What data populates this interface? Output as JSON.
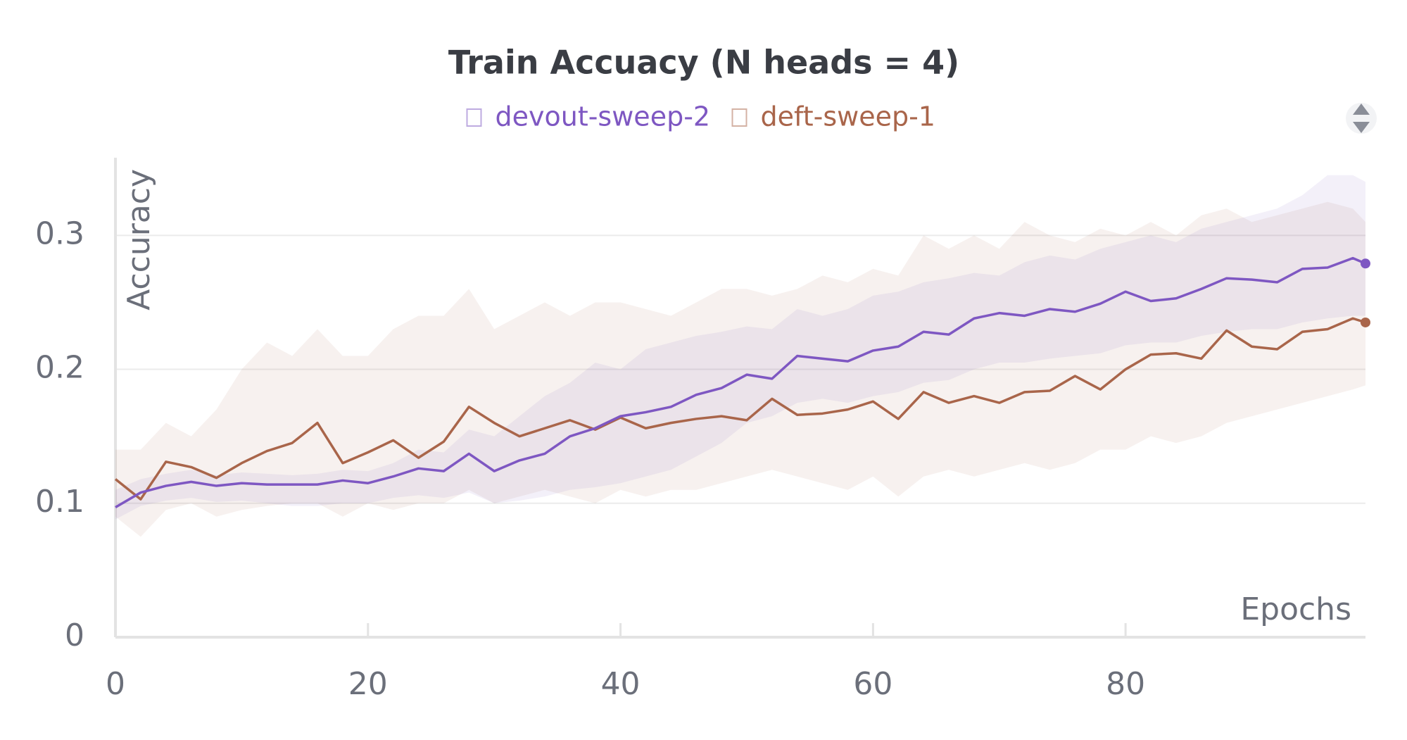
{
  "chart_data": {
    "type": "line",
    "title": "Train Accuacy (N heads = 4)",
    "x_label": "Epochs",
    "y_label": "Accuracy",
    "x": [
      0,
      2,
      4,
      6,
      8,
      10,
      12,
      14,
      16,
      18,
      20,
      22,
      24,
      26,
      28,
      30,
      32,
      34,
      36,
      38,
      40,
      42,
      44,
      46,
      48,
      50,
      52,
      54,
      56,
      58,
      60,
      62,
      64,
      66,
      68,
      70,
      72,
      74,
      76,
      78,
      80,
      82,
      84,
      86,
      88,
      90,
      92,
      94,
      96,
      98,
      99
    ],
    "series": [
      {
        "name": "devout-sweep-2",
        "color": "#7e57c2",
        "values": [
          0.097,
          0.108,
          0.113,
          0.116,
          0.113,
          0.115,
          0.114,
          0.114,
          0.114,
          0.117,
          0.115,
          0.12,
          0.126,
          0.124,
          0.137,
          0.124,
          0.132,
          0.137,
          0.15,
          0.156,
          0.165,
          0.168,
          0.172,
          0.181,
          0.186,
          0.196,
          0.193,
          0.21,
          0.208,
          0.206,
          0.214,
          0.217,
          0.228,
          0.226,
          0.238,
          0.242,
          0.24,
          0.245,
          0.243,
          0.249,
          0.258,
          0.251,
          0.253,
          0.26,
          0.268,
          0.267,
          0.265,
          0.275,
          0.276,
          0.283,
          0.279
        ],
        "upper": [
          0.11,
          0.118,
          0.122,
          0.125,
          0.121,
          0.123,
          0.122,
          0.121,
          0.122,
          0.125,
          0.124,
          0.13,
          0.14,
          0.138,
          0.155,
          0.15,
          0.165,
          0.18,
          0.19,
          0.205,
          0.2,
          0.215,
          0.22,
          0.225,
          0.228,
          0.232,
          0.23,
          0.245,
          0.24,
          0.245,
          0.255,
          0.258,
          0.265,
          0.268,
          0.272,
          0.27,
          0.28,
          0.285,
          0.282,
          0.29,
          0.295,
          0.3,
          0.295,
          0.305,
          0.31,
          0.315,
          0.32,
          0.33,
          0.345,
          0.345,
          0.34
        ],
        "lower": [
          0.088,
          0.098,
          0.102,
          0.104,
          0.101,
          0.102,
          0.1,
          0.098,
          0.098,
          0.1,
          0.1,
          0.104,
          0.106,
          0.104,
          0.108,
          0.1,
          0.102,
          0.105,
          0.11,
          0.112,
          0.115,
          0.12,
          0.125,
          0.135,
          0.145,
          0.16,
          0.165,
          0.175,
          0.178,
          0.175,
          0.18,
          0.183,
          0.19,
          0.192,
          0.2,
          0.205,
          0.205,
          0.208,
          0.21,
          0.212,
          0.218,
          0.22,
          0.22,
          0.225,
          0.228,
          0.23,
          0.23,
          0.235,
          0.238,
          0.24,
          0.24
        ]
      },
      {
        "name": "deft-sweep-1",
        "color": "#a9654a",
        "values": [
          0.118,
          0.103,
          0.131,
          0.127,
          0.119,
          0.13,
          0.139,
          0.145,
          0.16,
          0.13,
          0.138,
          0.147,
          0.134,
          0.146,
          0.172,
          0.16,
          0.15,
          0.156,
          0.162,
          0.155,
          0.164,
          0.156,
          0.16,
          0.163,
          0.165,
          0.162,
          0.178,
          0.166,
          0.167,
          0.17,
          0.176,
          0.163,
          0.183,
          0.175,
          0.18,
          0.175,
          0.183,
          0.184,
          0.195,
          0.185,
          0.2,
          0.211,
          0.212,
          0.208,
          0.229,
          0.217,
          0.215,
          0.228,
          0.23,
          0.238,
          0.235
        ],
        "upper": [
          0.14,
          0.14,
          0.16,
          0.15,
          0.17,
          0.2,
          0.22,
          0.21,
          0.23,
          0.21,
          0.21,
          0.23,
          0.24,
          0.24,
          0.26,
          0.23,
          0.24,
          0.25,
          0.24,
          0.25,
          0.25,
          0.245,
          0.24,
          0.25,
          0.26,
          0.26,
          0.255,
          0.26,
          0.27,
          0.265,
          0.275,
          0.27,
          0.3,
          0.29,
          0.3,
          0.29,
          0.31,
          0.3,
          0.295,
          0.305,
          0.3,
          0.31,
          0.3,
          0.315,
          0.32,
          0.31,
          0.315,
          0.32,
          0.325,
          0.32,
          0.31
        ],
        "lower": [
          0.09,
          0.075,
          0.095,
          0.1,
          0.09,
          0.095,
          0.098,
          0.1,
          0.1,
          0.09,
          0.1,
          0.095,
          0.1,
          0.1,
          0.11,
          0.1,
          0.105,
          0.11,
          0.105,
          0.1,
          0.11,
          0.105,
          0.11,
          0.11,
          0.115,
          0.12,
          0.125,
          0.12,
          0.115,
          0.11,
          0.12,
          0.105,
          0.12,
          0.125,
          0.12,
          0.125,
          0.13,
          0.125,
          0.13,
          0.14,
          0.14,
          0.15,
          0.145,
          0.15,
          0.16,
          0.165,
          0.17,
          0.175,
          0.18,
          0.185,
          0.188
        ]
      }
    ],
    "xlim": [
      0,
      99
    ],
    "ylim": [
      0,
      0.358
    ],
    "xticks": [
      0,
      20,
      40,
      60,
      80
    ],
    "yticks": [
      0,
      0.1,
      0.2,
      0.3
    ],
    "grid": true
  }
}
